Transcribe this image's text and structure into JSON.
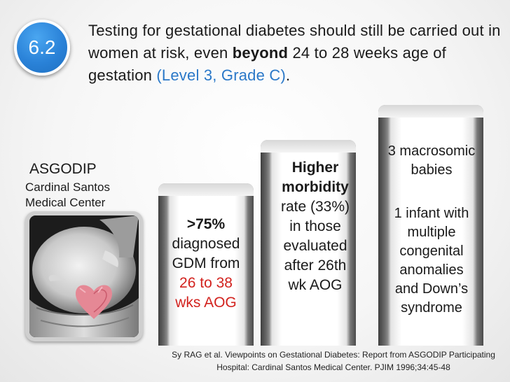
{
  "badge": {
    "label": "6.2",
    "color": "#2a82d8"
  },
  "heading": {
    "text_1": "Testing for gestational diabetes should still be carried out in women at risk, even ",
    "bold": "beyond",
    "text_2": " 24 to 28 weeks age of gestation ",
    "level": "(Level 3, Grade C)",
    "text_3": ".",
    "level_color": "#2a78c8"
  },
  "left": {
    "title": "ASGODIP",
    "line_1": "Cardinal Santos",
    "line_2": "Medical Center"
  },
  "step2": {
    "line_1": ">75%",
    "line_2": "diagnosed",
    "line_3": "GDM from",
    "line_4": "26 to 38",
    "line_5": "wks AOG",
    "highlight_color": "#d2221e"
  },
  "step3": {
    "line_1": "Higher",
    "line_2": "morbidity",
    "line_3": "rate (33%)",
    "line_4": "in those",
    "line_5": "evaluated",
    "line_6": "after 26th",
    "line_7": "wk AOG"
  },
  "step4": {
    "line_1": "3 macrosomic",
    "line_2": "babies",
    "line_3": "1 infant with",
    "line_4": "multiple",
    "line_5": "congenital",
    "line_6": "anomalies",
    "line_7": "and Down’s",
    "line_8": "syndrome"
  },
  "citation": {
    "line_1": "Sy RAG et al. Viewpoints on Gestational Diabetes: Report from ASGODIP Participating",
    "line_2": "Hospital: Cardinal Santos Medical Center. PJIM 1996;34:45-48"
  }
}
